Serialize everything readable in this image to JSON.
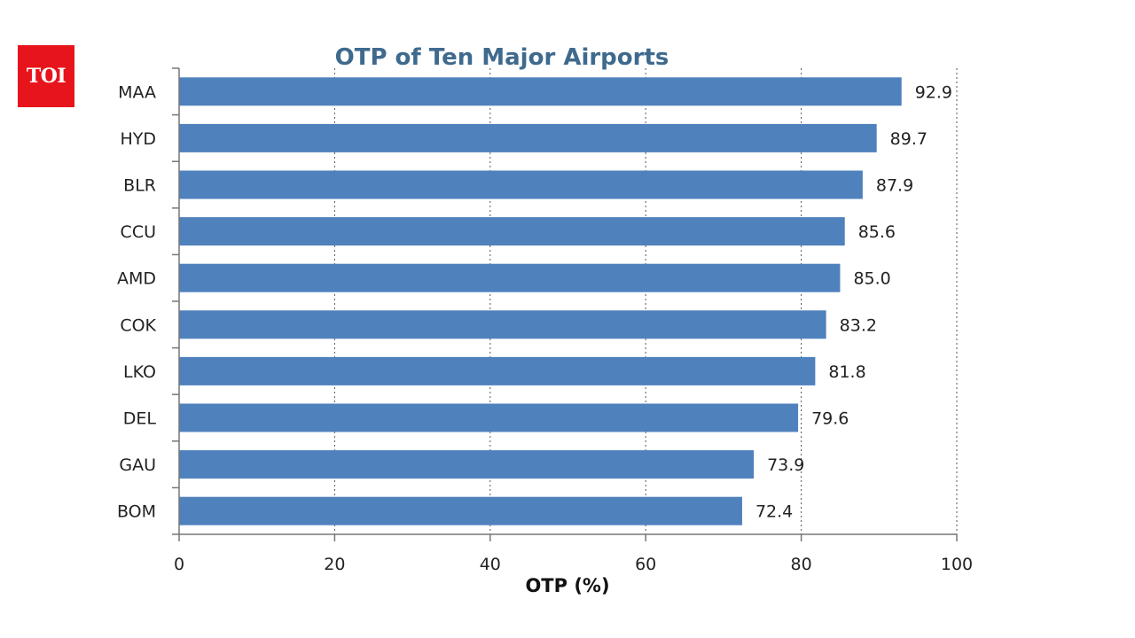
{
  "logo": {
    "text": "TOI"
  },
  "chart_data": {
    "type": "bar",
    "orientation": "horizontal",
    "title": "OTP of Ten Major Airports",
    "xlabel": "OTP (%)",
    "ylabel": "",
    "categories": [
      "MAA",
      "HYD",
      "BLR",
      "CCU",
      "AMD",
      "COK",
      "LKO",
      "DEL",
      "GAU",
      "BOM"
    ],
    "values": [
      92.9,
      89.7,
      87.9,
      85.6,
      85.0,
      83.2,
      81.8,
      79.6,
      73.9,
      72.4
    ],
    "value_labels": [
      "92.9",
      "89.7",
      "87.9",
      "85.6",
      "85.0",
      "83.2",
      "81.8",
      "79.6",
      "73.9",
      "72.4"
    ],
    "xlim": [
      0,
      100
    ],
    "xticks": [
      0,
      20,
      40,
      60,
      80,
      100
    ],
    "grid": true,
    "legend": "none",
    "bar_color": "#4f81bd"
  }
}
